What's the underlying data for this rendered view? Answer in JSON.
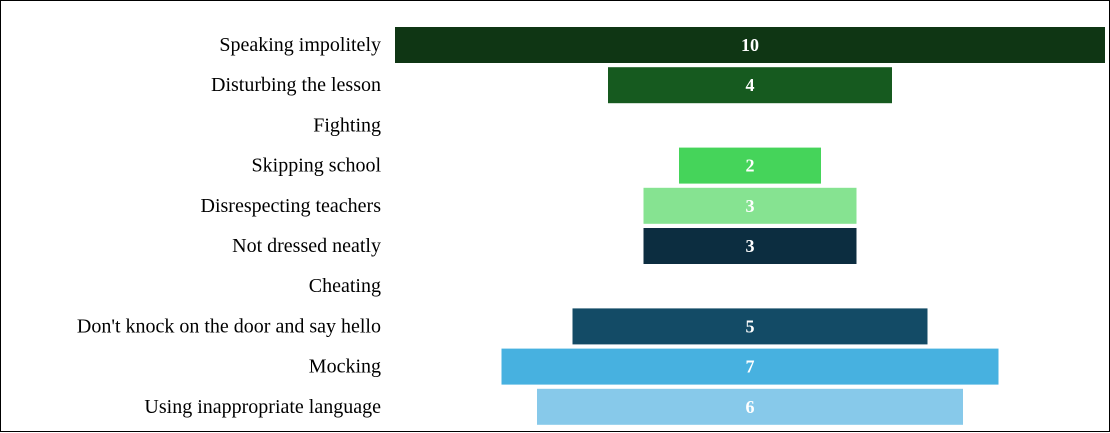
{
  "chart_data": {
    "type": "bar",
    "orientation": "horizontal-centered",
    "categories": [
      "Speaking impolitely",
      "Disturbing the lesson",
      "Fighting",
      "Skipping school",
      "Disrespecting teachers",
      "Not dressed neatly",
      "Cheating",
      "Don't knock on the door and say hello",
      "Mocking",
      "Using inappropriate language"
    ],
    "values": [
      10,
      4,
      0,
      2,
      3,
      3,
      0,
      5,
      7,
      6
    ],
    "value_labels": [
      "10",
      "4",
      "",
      "2",
      "3",
      "3",
      "",
      "5",
      "7",
      "6"
    ],
    "colors": [
      "#0f3614",
      "#165a1f",
      "#ffffff",
      "#45d45a",
      "#86e391",
      "#0c2d40",
      "#ffffff",
      "#134b66",
      "#47b1e0",
      "#87c9ea"
    ],
    "xlim": [
      0,
      10
    ],
    "grid": false,
    "legend": "none"
  }
}
